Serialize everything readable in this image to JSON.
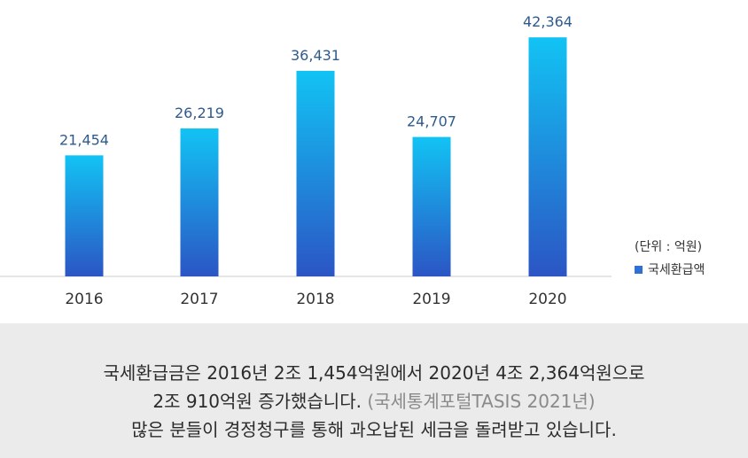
{
  "chart_data": {
    "type": "bar",
    "categories": [
      "2016",
      "2017",
      "2018",
      "2019",
      "2020"
    ],
    "values": [
      21454,
      26219,
      36431,
      24707,
      42364
    ],
    "value_labels": [
      "21,454",
      "26,219",
      "36,431",
      "24,707",
      "42,364"
    ],
    "unit_label": "(단위 : 억원)",
    "legend": [
      "국세환급액"
    ],
    "legend_position": "right",
    "ylim": [
      0,
      46000
    ],
    "grid": false,
    "colors": {
      "bar_top": "#12c3f4",
      "bar_bottom": "#2b55c4",
      "label": "#2e5a8c",
      "axis": "#cccccc"
    }
  },
  "caption": {
    "line1": "국세환급금은 2016년 2조 1,454억원에서 2020년 4조 2,364억원으로",
    "line2_main": "2조 910억원 증가했습니다.",
    "line2_source": "(국세통계포털TASIS 2021년)",
    "line3": "많은 분들이 경정청구를 통해 과오납된 세금을 돌려받고 있습니다."
  }
}
